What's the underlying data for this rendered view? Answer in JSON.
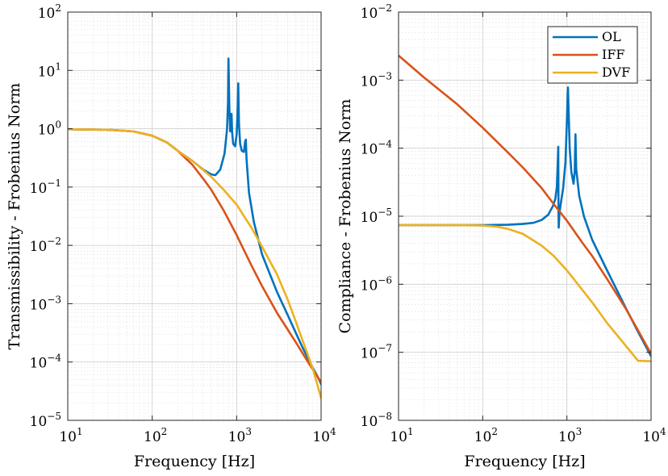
{
  "chart_data": [
    {
      "type": "line",
      "xscale": "log",
      "yscale": "log",
      "xlim": [
        10,
        10000
      ],
      "ylim": [
        1e-05,
        100
      ],
      "xlabel": "Frequency [Hz]",
      "ylabel": "Transmissibility - Frobenius Norm",
      "grid": true,
      "x_ticks": [
        {
          "base": "10",
          "exp": "1"
        },
        {
          "base": "10",
          "exp": "2"
        },
        {
          "base": "10",
          "exp": "3"
        },
        {
          "base": "10",
          "exp": "4"
        }
      ],
      "y_ticks": [
        {
          "base": "10",
          "exp": "−5"
        },
        {
          "base": "10",
          "exp": "−4"
        },
        {
          "base": "10",
          "exp": "−3"
        },
        {
          "base": "10",
          "exp": "−2"
        },
        {
          "base": "10",
          "exp": "−1"
        },
        {
          "base": "10",
          "exp": "0"
        },
        {
          "base": "10",
          "exp": "1"
        },
        {
          "base": "10",
          "exp": "2"
        }
      ],
      "series": [
        {
          "name": "OL",
          "color": "#0072BD",
          "points": [
            [
              10,
              0.98
            ],
            [
              30,
              0.96
            ],
            [
              60,
              0.9
            ],
            [
              100,
              0.76
            ],
            [
              150,
              0.58
            ],
            [
              200,
              0.42
            ],
            [
              300,
              0.28
            ],
            [
              400,
              0.2
            ],
            [
              500,
              0.165
            ],
            [
              560,
              0.16
            ],
            [
              640,
              0.2
            ],
            [
              720,
              0.38
            ],
            [
              770,
              1.0
            ],
            [
              790,
              2.8
            ],
            [
              800,
              16.0
            ],
            [
              820,
              2.2
            ],
            [
              840,
              0.9
            ],
            [
              855,
              1.5
            ],
            [
              870,
              1.8
            ],
            [
              885,
              0.85
            ],
            [
              910,
              0.55
            ],
            [
              960,
              0.5
            ],
            [
              1000,
              0.8
            ],
            [
              1030,
              2.4
            ],
            [
              1045,
              6.0
            ],
            [
              1065,
              1.2
            ],
            [
              1100,
              0.55
            ],
            [
              1150,
              0.42
            ],
            [
              1220,
              0.4
            ],
            [
              1260,
              0.6
            ],
            [
              1285,
              0.65
            ],
            [
              1310,
              0.3
            ],
            [
              1400,
              0.08
            ],
            [
              1600,
              0.025
            ],
            [
              2000,
              0.007
            ],
            [
              3000,
              0.0016
            ],
            [
              4000,
              0.00065
            ],
            [
              5000,
              0.00032
            ],
            [
              6000,
              0.00018
            ],
            [
              7000,
              0.000115
            ],
            [
              8000,
              7.8e-05
            ],
            [
              9000,
              5.8e-05
            ],
            [
              10000,
              4.2e-05
            ]
          ]
        },
        {
          "name": "IFF",
          "color": "#D95319",
          "points": [
            [
              10,
              0.98
            ],
            [
              30,
              0.96
            ],
            [
              60,
              0.9
            ],
            [
              100,
              0.76
            ],
            [
              150,
              0.58
            ],
            [
              200,
              0.42
            ],
            [
              300,
              0.24
            ],
            [
              400,
              0.14
            ],
            [
              500,
              0.09
            ],
            [
              700,
              0.04
            ],
            [
              1000,
              0.015
            ],
            [
              1500,
              0.0045
            ],
            [
              2000,
              0.002
            ],
            [
              3000,
              0.0007
            ],
            [
              5000,
              0.00022
            ],
            [
              7000,
              0.0001
            ],
            [
              10000,
              4.5e-05
            ]
          ]
        },
        {
          "name": "DVF",
          "color": "#EDB120",
          "points": [
            [
              10,
              0.98
            ],
            [
              30,
              0.96
            ],
            [
              60,
              0.9
            ],
            [
              100,
              0.76
            ],
            [
              150,
              0.58
            ],
            [
              200,
              0.42
            ],
            [
              300,
              0.28
            ],
            [
              500,
              0.15
            ],
            [
              700,
              0.09
            ],
            [
              1000,
              0.05
            ],
            [
              1500,
              0.02
            ],
            [
              2000,
              0.0095
            ],
            [
              3000,
              0.0032
            ],
            [
              4000,
              0.0012
            ],
            [
              5000,
              0.0005
            ],
            [
              6000,
              0.00024
            ],
            [
              7000,
              0.00013
            ],
            [
              8000,
              7.5e-05
            ],
            [
              9000,
              4.2e-05
            ],
            [
              10000,
              2.4e-05
            ]
          ]
        }
      ]
    },
    {
      "type": "line",
      "xscale": "log",
      "yscale": "log",
      "xlim": [
        10,
        10000
      ],
      "ylim": [
        1e-08,
        0.01
      ],
      "xlabel": "Frequency [Hz]",
      "ylabel": "Compliance - Frobenius Norm",
      "grid": true,
      "legend": "top-right",
      "x_ticks": [
        {
          "base": "10",
          "exp": "1"
        },
        {
          "base": "10",
          "exp": "2"
        },
        {
          "base": "10",
          "exp": "3"
        },
        {
          "base": "10",
          "exp": "4"
        }
      ],
      "y_ticks": [
        {
          "base": "10",
          "exp": "−8"
        },
        {
          "base": "10",
          "exp": "−7"
        },
        {
          "base": "10",
          "exp": "−6"
        },
        {
          "base": "10",
          "exp": "−5"
        },
        {
          "base": "10",
          "exp": "−4"
        },
        {
          "base": "10",
          "exp": "−3"
        },
        {
          "base": "10",
          "exp": "−2"
        }
      ],
      "series": [
        {
          "name": "OL",
          "color": "#0072BD",
          "points": [
            [
              10,
              7.4e-06
            ],
            [
              50,
              7.4e-06
            ],
            [
              100,
              7.4e-06
            ],
            [
              200,
              7.5e-06
            ],
            [
              300,
              7.7e-06
            ],
            [
              400,
              8e-06
            ],
            [
              500,
              8.8e-06
            ],
            [
              600,
              1.05e-05
            ],
            [
              680,
              1.4e-05
            ],
            [
              730,
              1.8e-05
            ],
            [
              760,
              2.7e-05
            ],
            [
              780,
              6.5e-05
            ],
            [
              790,
              0.000105
            ],
            [
              795,
              1.2e-05
            ],
            [
              800,
              6.8e-06
            ],
            [
              815,
              1.1e-05
            ],
            [
              850,
              1.6e-05
            ],
            [
              900,
              2.5e-05
            ],
            [
              960,
              6e-05
            ],
            [
              1000,
              0.00025
            ],
            [
              1020,
              0.0006
            ],
            [
              1030,
              0.00078
            ],
            [
              1045,
              0.0004
            ],
            [
              1080,
              0.0001
            ],
            [
              1130,
              4.5e-05
            ],
            [
              1200,
              3e-05
            ],
            [
              1240,
              4.5e-05
            ],
            [
              1265,
              0.00016
            ],
            [
              1290,
              5e-05
            ],
            [
              1400,
              2e-05
            ],
            [
              1600,
              9.8e-06
            ],
            [
              2000,
              4.5e-06
            ],
            [
              3000,
              1.6e-06
            ],
            [
              5000,
              4.5e-07
            ],
            [
              7000,
              2e-07
            ],
            [
              10000,
              8.8e-08
            ]
          ]
        },
        {
          "name": "IFF",
          "color": "#D95319",
          "points": [
            [
              10,
              0.0023
            ],
            [
              20,
              0.0011
            ],
            [
              50,
              0.00044
            ],
            [
              100,
              0.0002
            ],
            [
              200,
              8.6e-05
            ],
            [
              300,
              5.2e-05
            ],
            [
              500,
              2.6e-05
            ],
            [
              700,
              1.5e-05
            ],
            [
              1000,
              8.6e-06
            ],
            [
              1500,
              4.2e-06
            ],
            [
              2000,
              2.6e-06
            ],
            [
              3000,
              1.2e-06
            ],
            [
              5000,
              4.4e-07
            ],
            [
              7000,
              2.1e-07
            ],
            [
              10000,
              9.5e-08
            ]
          ]
        },
        {
          "name": "DVF",
          "color": "#EDB120",
          "points": [
            [
              10,
              7.4e-06
            ],
            [
              50,
              7.4e-06
            ],
            [
              100,
              7.3e-06
            ],
            [
              150,
              7e-06
            ],
            [
              200,
              6.5e-06
            ],
            [
              300,
              5.5e-06
            ],
            [
              500,
              3.7e-06
            ],
            [
              700,
              2.6e-06
            ],
            [
              1000,
              1.6e-06
            ],
            [
              1500,
              8.5e-07
            ],
            [
              2000,
              5.4e-07
            ],
            [
              3000,
              2.7e-07
            ],
            [
              5000,
              1.25e-07
            ],
            [
              7000,
              7.5e-08
            ],
            [
              10000,
              7.4e-08
            ]
          ]
        }
      ]
    }
  ]
}
